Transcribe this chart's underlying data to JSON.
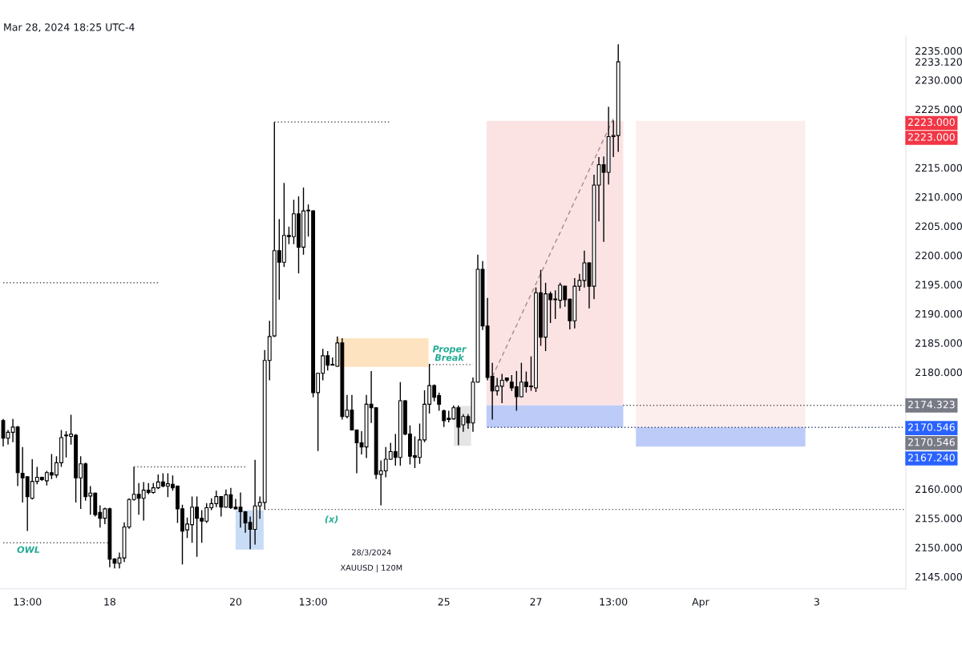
{
  "chart_data": {
    "type": "candlestick",
    "categories": [
      null,
      null,
      null,
      null,
      null,
      "13:00",
      null,
      null,
      null,
      null,
      null,
      null,
      null,
      null,
      null,
      null,
      null,
      null,
      null,
      null,
      null,
      null,
      "18",
      null,
      null,
      null,
      null,
      null,
      null,
      null,
      null,
      null,
      null,
      null,
      null,
      null,
      null,
      null,
      null,
      null,
      null,
      null,
      null,
      null,
      null,
      null,
      null,
      null,
      "20",
      null,
      null,
      null,
      null,
      null,
      null,
      null,
      null,
      null,
      null,
      null,
      null,
      null,
      null,
      null,
      "13:00",
      null,
      null,
      null,
      null,
      null,
      null,
      null,
      null,
      null,
      null,
      null,
      null,
      null,
      null,
      null,
      null,
      null,
      null,
      null,
      null,
      null,
      null,
      null,
      null,
      null,
      null,
      "25",
      null,
      null,
      null,
      null,
      null,
      null,
      null,
      null,
      null,
      null,
      null,
      null,
      null,
      null,
      null,
      null,
      null,
      null,
      "27",
      null,
      null,
      null,
      null,
      null,
      null,
      null,
      null,
      null,
      null,
      null,
      null,
      null,
      null,
      null,
      "13:00",
      null,
      null,
      null,
      null,
      null,
      null,
      null,
      null,
      null,
      null,
      null,
      null,
      null,
      null,
      null,
      null,
      null,
      "Apr",
      null,
      null,
      null,
      null,
      null,
      null,
      null,
      null,
      null,
      null,
      null,
      null,
      null,
      null,
      null,
      null,
      null,
      null,
      null,
      null,
      null,
      null,
      null,
      "3",
      null,
      null,
      null,
      null,
      null,
      null,
      null,
      null,
      null,
      null,
      null,
      null,
      null,
      null,
      null,
      null,
      null,
      null
    ],
    "ohlc": [
      [
        2171.7,
        2172.0,
        2167.3,
        2168.7
      ],
      [
        2168.7,
        2170.1,
        2167.6,
        2169.7
      ],
      [
        2169.7,
        2172.0,
        2168.0,
        2170.6
      ],
      [
        2170.6,
        2170.8,
        2160.5,
        2162.8
      ],
      [
        2162.7,
        2167.2,
        2157.7,
        2161.9
      ],
      [
        2162.1,
        2162.1,
        2152.8,
        2158.7
      ],
      [
        2158.4,
        2165.1,
        2158.2,
        2161.3
      ],
      [
        2161.3,
        2163.8,
        2160.8,
        2162.0
      ],
      [
        2162.0,
        2162.1,
        2161.4,
        2161.6
      ],
      [
        2161.4,
        2163.1,
        2160.6,
        2162.8
      ],
      [
        2162.8,
        2166.0,
        2161.7,
        2162.4
      ],
      [
        2162.4,
        2165.6,
        2161.9,
        2164.5
      ],
      [
        2164.5,
        2170.1,
        2163.8,
        2168.8
      ],
      [
        2169.1,
        2169.9,
        2165.4,
        2169.2
      ],
      [
        2169.0,
        2172.7,
        2167.6,
        2169.4
      ],
      [
        2169.2,
        2169.4,
        2157.7,
        2161.9
      ],
      [
        2161.9,
        2165.6,
        2156.6,
        2164.3
      ],
      [
        2164.3,
        2164.5,
        2158.0,
        2158.7
      ],
      [
        2158.8,
        2160.5,
        2155.6,
        2159.3
      ],
      [
        2159.3,
        2159.4,
        2155.3,
        2155.6
      ],
      [
        2156.0,
        2157.2,
        2153.4,
        2155.0
      ],
      [
        2155.0,
        2156.8,
        2154.0,
        2156.6
      ],
      [
        2156.6,
        2156.8,
        2146.6,
        2148.0
      ],
      [
        2148.0,
        2148.2,
        2146.4,
        2147.3
      ],
      [
        2147.3,
        2149.1,
        2146.4,
        2148.2
      ],
      [
        2148.2,
        2154.3,
        2147.5,
        2153.5
      ],
      [
        2153.5,
        2158.4,
        2153.2,
        2158.2
      ],
      [
        2158.2,
        2163.8,
        2158.0,
        2159.1
      ],
      [
        2159.1,
        2161.0,
        2155.6,
        2158.4
      ],
      [
        2158.4,
        2161.2,
        2154.6,
        2159.8
      ],
      [
        2159.8,
        2161.0,
        2159.1,
        2159.4
      ],
      [
        2159.4,
        2161.0,
        2159.2,
        2160.2
      ],
      [
        2160.2,
        2162.5,
        2160.0,
        2161.2
      ],
      [
        2161.2,
        2162.7,
        2160.3,
        2160.5
      ],
      [
        2160.5,
        2162.7,
        2158.6,
        2160.9
      ],
      [
        2160.8,
        2162.3,
        2159.7,
        2160.2
      ],
      [
        2160.5,
        2160.6,
        2154.2,
        2156.6
      ],
      [
        2156.6,
        2157.3,
        2147.1,
        2152.8
      ],
      [
        2153.0,
        2155.1,
        2151.6,
        2154.0
      ],
      [
        2153.9,
        2158.7,
        2150.8,
        2156.9
      ],
      [
        2156.9,
        2158.7,
        2148.4,
        2155.0
      ],
      [
        2155.0,
        2156.4,
        2150.8,
        2154.5
      ],
      [
        2154.5,
        2157.6,
        2154.2,
        2156.8
      ],
      [
        2156.8,
        2158.4,
        2156.4,
        2157.5
      ],
      [
        2157.5,
        2159.7,
        2156.9,
        2158.7
      ],
      [
        2158.7,
        2158.8,
        2155.3,
        2156.9
      ],
      [
        2156.9,
        2159.9,
        2156.8,
        2159.0
      ],
      [
        2159.0,
        2160.2,
        2156.6,
        2156.8
      ],
      [
        2156.9,
        2158.3,
        2156.5,
        2156.6
      ],
      [
        2156.9,
        2159.4,
        2153.4,
        2156.1
      ],
      [
        2156.1,
        2156.2,
        2152.5,
        2154.2
      ],
      [
        2154.3,
        2155.3,
        2149.7,
        2153.1
      ],
      [
        2153.1,
        2165.0,
        2150.5,
        2157.1
      ],
      [
        2157.1,
        2158.7,
        2154.9,
        2157.7
      ],
      [
        2157.7,
        2183.8,
        2156.5,
        2182.0
      ],
      [
        2182.0,
        2188.8,
        2178.6,
        2186.1
      ],
      [
        2186.2,
        2222.8,
        2186.0,
        2200.8
      ],
      [
        2200.8,
        2206.2,
        2192.4,
        2198.8
      ],
      [
        2198.8,
        2212.4,
        2198.0,
        2203.4
      ],
      [
        2203.4,
        2204.9,
        2201.9,
        2203.2
      ],
      [
        2203.2,
        2209.5,
        2201.9,
        2207.1
      ],
      [
        2207.1,
        2210.1,
        2196.9,
        2201.4
      ],
      [
        2201.4,
        2211.6,
        2200.1,
        2207.6
      ],
      [
        2207.6,
        2208.7,
        2203.2,
        2207.7
      ],
      [
        2207.6,
        2207.7,
        2175.7,
        2176.5
      ],
      [
        2176.5,
        2179.9,
        2166.5,
        2179.8
      ],
      [
        2179.8,
        2184.0,
        2178.6,
        2182.8
      ],
      [
        2182.8,
        2183.6,
        2180.3,
        2181.2
      ],
      [
        2181.2,
        2182.5,
        2181.2,
        2181.3
      ],
      [
        2181.0,
        2186.1,
        2180.9,
        2185.0
      ],
      [
        2185.0,
        2185.8,
        2171.9,
        2172.4
      ],
      [
        2172.4,
        2176.1,
        2172.1,
        2173.5
      ],
      [
        2173.5,
        2176.1,
        2170.0,
        2170.1
      ],
      [
        2170.1,
        2170.2,
        2162.7,
        2167.9
      ],
      [
        2167.9,
        2169.9,
        2165.9,
        2167.2
      ],
      [
        2167.2,
        2176.1,
        2165.3,
        2174.5
      ],
      [
        2174.5,
        2180.2,
        2171.3,
        2173.9
      ],
      [
        2173.9,
        2174.0,
        2161.7,
        2162.5
      ],
      [
        2162.5,
        2164.9,
        2157.2,
        2163.1
      ],
      [
        2163.1,
        2167.2,
        2162.0,
        2165.1
      ],
      [
        2165.1,
        2167.9,
        2165.0,
        2166.4
      ],
      [
        2166.4,
        2169.4,
        2164.0,
        2165.4
      ],
      [
        2165.4,
        2178.3,
        2164.0,
        2175.1
      ],
      [
        2175.1,
        2175.2,
        2169.2,
        2169.4
      ],
      [
        2169.4,
        2170.9,
        2164.2,
        2165.6
      ],
      [
        2165.7,
        2169.0,
        2163.6,
        2165.4
      ],
      [
        2165.4,
        2171.2,
        2164.3,
        2168.4
      ],
      [
        2168.4,
        2176.9,
        2168.0,
        2174.5
      ],
      [
        2174.5,
        2181.4,
        2172.9,
        2177.7
      ],
      [
        2177.7,
        2177.9,
        2175.0,
        2175.7
      ],
      [
        2176.0,
        2176.5,
        2173.4,
        2174.5
      ],
      [
        2173.4,
        2173.6,
        2170.6,
        2171.7
      ],
      [
        2172.1,
        2173.4,
        2171.4,
        2171.9
      ],
      [
        2172.0,
        2174.3,
        2171.9,
        2173.9
      ],
      [
        2173.9,
        2174.3,
        2167.5,
        2170.6
      ],
      [
        2171.0,
        2172.8,
        2169.8,
        2172.4
      ],
      [
        2172.4,
        2172.8,
        2170.3,
        2171.3
      ],
      [
        2171.3,
        2179.1,
        2169.8,
        2178.3
      ],
      [
        2178.3,
        2200.1,
        2178.2,
        2197.6
      ],
      [
        2197.6,
        2199.0,
        2187.2,
        2187.9
      ],
      [
        2187.9,
        2192.7,
        2178.6,
        2179.1
      ],
      [
        2179.3,
        2181.6,
        2171.9,
        2176.8
      ],
      [
        2176.8,
        2179.0,
        2176.0,
        2177.6
      ],
      [
        2177.6,
        2179.7,
        2174.7,
        2178.6
      ],
      [
        2179.0,
        2179.1,
        2178.3,
        2178.6
      ],
      [
        2178.3,
        2179.5,
        2176.8,
        2177.3
      ],
      [
        2177.5,
        2180.2,
        2173.4,
        2175.8
      ],
      [
        2175.8,
        2181.6,
        2175.7,
        2178.3
      ],
      [
        2178.3,
        2180.1,
        2176.5,
        2177.5
      ],
      [
        2177.5,
        2182.7,
        2176.8,
        2177.6
      ],
      [
        2177.3,
        2194.5,
        2176.6,
        2193.6
      ],
      [
        2193.6,
        2197.5,
        2184.5,
        2186.0
      ],
      [
        2186.0,
        2195.3,
        2183.6,
        2193.4
      ],
      [
        2193.4,
        2193.8,
        2188.4,
        2192.4
      ],
      [
        2192.4,
        2194.0,
        2189.1,
        2192.5
      ],
      [
        2192.3,
        2195.3,
        2190.9,
        2194.9
      ],
      [
        2194.7,
        2194.8,
        2191.2,
        2192.4
      ],
      [
        2192.5,
        2192.6,
        2187.3,
        2188.8
      ],
      [
        2188.8,
        2196.1,
        2187.5,
        2194.7
      ],
      [
        2194.7,
        2196.8,
        2193.9,
        2195.7
      ],
      [
        2195.7,
        2200.8,
        2194.5,
        2198.7
      ],
      [
        2198.7,
        2198.8,
        2190.9,
        2194.7
      ],
      [
        2194.7,
        2213.8,
        2192.5,
        2212.0
      ],
      [
        2212.0,
        2216.8,
        2205.8,
        2215.5
      ],
      [
        2215.5,
        2216.9,
        2202.3,
        2214.2
      ],
      [
        2214.2,
        2225.4,
        2212.1,
        2220.3
      ],
      [
        2220.3,
        2223.1,
        2216.8,
        2220.5
      ],
      [
        2220.5,
        2236.1,
        2217.7,
        2233.12
      ],
      null,
      null,
      null,
      null,
      null,
      null,
      null,
      null,
      null,
      null,
      null,
      null,
      null,
      null,
      null,
      null,
      null,
      null,
      null,
      null,
      null,
      null,
      null,
      null,
      null,
      null,
      null,
      null,
      null,
      null,
      null,
      null,
      null,
      null,
      null,
      null,
      null,
      null,
      null,
      null,
      null,
      null,
      null,
      null,
      null,
      null,
      null,
      null,
      null,
      null,
      null,
      null,
      null,
      null,
      null,
      null,
      null,
      null,
      null
    ],
    "color": "#000000",
    "bands": [
      {
        "axis": "y",
        "from": 2174.323,
        "to": 2223,
        "color": "#fbe3e4"
      },
      {
        "axis": "y",
        "from": 2170.546,
        "to": 2174.323,
        "color": "#bccbf8"
      },
      {
        "axis": "y",
        "from": 2170.546,
        "to": 2223,
        "color": "#fdeeee"
      },
      {
        "axis": "y",
        "from": 2167.24,
        "to": 2170.546,
        "color": "#bccbf8"
      },
      {
        "axis": "y",
        "from": 2180.9,
        "to": 2185.8,
        "color": "#fde3c0"
      }
    ],
    "series": [
      {
        "type": "line",
        "color": "#555555",
        "line_style": "dotted",
        "values": [
          2195.3,
          2195.3,
          2195.3,
          2195.3,
          2195.3,
          2195.3,
          2195.3,
          2195.3,
          2195.3,
          2195.3,
          2195.3,
          2195.3,
          2195.3,
          2195.3,
          2195.3,
          2195.3,
          2195.3,
          2195.3,
          2195.3,
          2195.3,
          2195.3,
          2195.3,
          2195.3,
          2195.3,
          2195.3,
          2195.3,
          2195.3,
          2195.3,
          2195.3,
          2195.3,
          2195.3,
          2195.3,
          2195.3,
          null,
          null,
          null,
          null,
          null,
          null,
          null,
          null,
          null,
          null,
          null,
          null,
          null,
          null,
          null,
          null,
          null,
          null,
          null,
          null,
          null,
          null,
          null,
          2222.8,
          2222.8,
          2222.8,
          2222.8,
          2222.8,
          2222.8,
          2222.8,
          2222.8,
          2222.8,
          2222.8,
          2222.8,
          2222.8,
          2222.8,
          2222.8,
          2222.8,
          2222.8,
          2222.8,
          2222.8,
          2222.8,
          2222.8,
          2222.8,
          2222.8,
          2222.8,
          2222.8,
          2222.8,
          null,
          null,
          null,
          null,
          null,
          null,
          null,
          2181.3,
          2181.3,
          2181.3,
          2181.3,
          2181.3,
          2181.3,
          2181.3,
          2181.3,
          2181.3,
          2181.3,
          null,
          null,
          null,
          null,
          null,
          null,
          null,
          null,
          null,
          null,
          null,
          null,
          null,
          null,
          null,
          null,
          null,
          null,
          null,
          null,
          null,
          null,
          null,
          null,
          null,
          null,
          null,
          null,
          null,
          null,
          null,
          null,
          null,
          null,
          null,
          null,
          null,
          null,
          null,
          null,
          null,
          null,
          null,
          null,
          null,
          null,
          null,
          null,
          null,
          null,
          null,
          null,
          null,
          null,
          null,
          null,
          null,
          null,
          null,
          null,
          null,
          null,
          null,
          null,
          null,
          null,
          null,
          null,
          null,
          null,
          null,
          null,
          null,
          null,
          null,
          null,
          null,
          null,
          null,
          null,
          null,
          null,
          null,
          null,
          null,
          null,
          null,
          null,
          null
        ]
      },
      {
        "type": "line",
        "color": "#555555",
        "line_style": "dotted",
        "values": [
          2150.8,
          2150.8,
          2150.8,
          2150.8,
          2150.8,
          2150.8,
          2150.8,
          2150.8,
          2150.8,
          2150.8,
          2150.8,
          2150.8,
          2150.8,
          2150.8,
          2150.8,
          2150.8,
          2150.8,
          2150.8,
          2150.8,
          2150.8,
          2150.8,
          2150.8,
          2150.8,
          null,
          null,
          null,
          null,
          2163.8,
          2163.8,
          2163.8,
          2163.8,
          2163.8,
          2163.8,
          2163.8,
          2163.8,
          2163.8,
          2163.8,
          2163.8,
          2163.8,
          2163.8,
          2163.8,
          2163.8,
          2163.8,
          2163.8,
          2163.8,
          2163.8,
          2163.8,
          2163.8,
          2163.8,
          2163.8,
          2163.8,
          null,
          null,
          null,
          2156.5,
          2156.5,
          2156.5,
          2156.5,
          2156.5,
          2156.5,
          2156.5,
          2156.5,
          2156.5,
          2156.5,
          2156.5,
          2156.5,
          2156.5,
          2156.5,
          2156.5,
          2156.5,
          2156.5,
          2156.5,
          2156.5,
          2156.5,
          2156.5,
          2156.5,
          2156.5,
          2156.5,
          2156.5,
          2156.5,
          2156.5,
          2156.5,
          2156.5,
          2156.5,
          2156.5,
          2156.5,
          2156.5,
          2156.5,
          2156.5,
          2156.5,
          2156.5,
          2156.5,
          2156.5,
          2156.5,
          2156.5,
          2156.5,
          2156.5,
          2156.5,
          2156.5,
          2156.5,
          2156.5,
          2156.5,
          2156.5,
          2156.5,
          2156.5,
          2156.5,
          2156.5,
          2156.5,
          2156.5,
          2156.5,
          2156.5,
          2156.5,
          2156.5,
          2156.5,
          2156.5,
          2156.5,
          2156.5,
          2156.5,
          2156.5,
          2156.5,
          2156.5,
          2156.5,
          2156.5,
          2156.5,
          2156.5,
          2156.5,
          2156.5,
          2156.5,
          2156.5,
          2156.5,
          2156.5,
          2156.5,
          2156.5,
          2156.5,
          2156.5,
          2156.5,
          2156.5,
          2156.5,
          2156.5,
          2156.5,
          2156.5,
          2156.5,
          2156.5,
          2156.5,
          2156.5,
          2156.5,
          2156.5,
          2156.5,
          2156.5,
          2156.5,
          2156.5,
          2156.5,
          2156.5,
          2156.5,
          2156.5,
          2156.5,
          2156.5,
          2156.5,
          2156.5,
          2156.5,
          2156.5,
          2156.5,
          2156.5,
          2156.5,
          2156.5,
          2156.5,
          2156.5,
          2156.5,
          2156.5,
          2156.5,
          2156.5,
          2156.5,
          2156.5,
          2156.5,
          2156.5,
          2156.5,
          2156.5,
          2156.5,
          2156.5,
          2156.5,
          2156.5,
          2156.5,
          2156.5,
          2156.5,
          2156.5,
          2156.5,
          2156.5
        ]
      },
      {
        "type": "line",
        "color": "#555555",
        "line_style": "dotted",
        "values": [
          null,
          null,
          null,
          null,
          null,
          null,
          null,
          null,
          null,
          null,
          null,
          null,
          null,
          null,
          null,
          null,
          null,
          null,
          null,
          null,
          null,
          null,
          null,
          null,
          null,
          null,
          null,
          null,
          null,
          null,
          null,
          null,
          null,
          null,
          null,
          null,
          null,
          null,
          null,
          null,
          null,
          null,
          null,
          null,
          null,
          null,
          null,
          null,
          null,
          null,
          null,
          null,
          null,
          null,
          null,
          null,
          null,
          null,
          null,
          null,
          null,
          null,
          null,
          null,
          null,
          null,
          null,
          null,
          null,
          null,
          null,
          null,
          null,
          null,
          null,
          null,
          null,
          null,
          null,
          null,
          null,
          null,
          null,
          null,
          null,
          null,
          null,
          null,
          null,
          null,
          null,
          null,
          null,
          null,
          null,
          null,
          null,
          null,
          null,
          null,
          null,
          null,
          null,
          null,
          null,
          null,
          null,
          null,
          null,
          null,
          null,
          null,
          null,
          null,
          null,
          null,
          null,
          null,
          null,
          null,
          null,
          null,
          null,
          null,
          null,
          null,
          null,
          null,
          2174.323,
          2174.323,
          2174.323,
          2174.323,
          2174.323,
          2174.323,
          2174.323,
          2174.323,
          2174.323,
          2174.323,
          2174.323,
          2174.323,
          2174.323,
          2174.323,
          2174.323,
          2174.323,
          2174.323,
          2174.323,
          2174.323,
          2174.323,
          2174.323,
          2174.323,
          2174.323,
          2174.323,
          2174.323,
          2174.323,
          2174.323,
          2174.323,
          2174.323,
          2174.323,
          2174.323,
          2174.323,
          2174.323,
          2174.323,
          2174.323,
          2174.323,
          2174.323,
          2174.323,
          2174.323,
          2174.323,
          2174.323,
          2174.323,
          2174.323,
          2174.323,
          2174.323,
          2174.323,
          2174.323,
          2174.323,
          2174.323,
          2174.323,
          2174.323,
          2174.323,
          2174.323,
          2174.323,
          2174.323,
          2174.323,
          2174.323,
          2174.323,
          2174.323
        ]
      },
      {
        "type": "line",
        "color": "#3a4a7a",
        "line_style": "dotted",
        "values": [
          null,
          null,
          null,
          null,
          null,
          null,
          null,
          null,
          null,
          null,
          null,
          null,
          null,
          null,
          null,
          null,
          null,
          null,
          null,
          null,
          null,
          null,
          null,
          null,
          null,
          null,
          null,
          null,
          null,
          null,
          null,
          null,
          null,
          null,
          null,
          null,
          null,
          null,
          null,
          null,
          null,
          null,
          null,
          null,
          null,
          null,
          null,
          null,
          null,
          null,
          null,
          null,
          null,
          null,
          null,
          null,
          null,
          null,
          null,
          null,
          null,
          null,
          null,
          null,
          null,
          null,
          null,
          null,
          null,
          null,
          null,
          null,
          null,
          null,
          null,
          null,
          null,
          null,
          null,
          null,
          null,
          null,
          null,
          null,
          null,
          null,
          null,
          null,
          null,
          null,
          null,
          null,
          null,
          null,
          null,
          null,
          null,
          null,
          null,
          null,
          2170.546,
          2170.546,
          2170.546,
          2170.546,
          2170.546,
          2170.546,
          2170.546,
          2170.546,
          2170.546,
          2170.546,
          2170.546,
          2170.546,
          2170.546,
          2170.546,
          2170.546,
          2170.546,
          2170.546,
          2170.546,
          2170.546,
          2170.546,
          2170.546,
          2170.546,
          2170.546,
          2170.546,
          2170.546,
          2170.546,
          2170.546,
          2170.546,
          2170.546,
          2170.546,
          2170.546,
          2170.546,
          2170.546,
          2170.546,
          2170.546,
          2170.546,
          2170.546,
          2170.546,
          2170.546,
          2170.546,
          2170.546,
          2170.546,
          2170.546,
          2170.546,
          2170.546,
          2170.546,
          2170.546,
          2170.546,
          2170.546,
          2170.546,
          2170.546,
          2170.546,
          2170.546,
          2170.546,
          2170.546,
          2170.546,
          2170.546,
          2170.546,
          2170.546,
          2170.546,
          2170.546,
          2170.546,
          2170.546,
          2170.546,
          2170.546,
          2170.546,
          2170.546,
          2170.546,
          2170.546,
          2170.546,
          2170.546,
          2170.546,
          2170.546,
          2170.546,
          2170.546,
          2170.546,
          2170.546,
          2170.546,
          2170.546,
          2170.546,
          2170.546,
          2170.546,
          2170.546,
          2170.546,
          2170.546,
          2170.546,
          2170.546
        ]
      },
      {
        "type": "line",
        "color": "#a08c8e",
        "line_style": "dashed",
        "values": [
          null,
          null,
          null,
          null,
          null,
          null,
          null,
          null,
          null,
          null,
          null,
          null,
          null,
          null,
          null,
          null,
          null,
          null,
          null,
          null,
          null,
          null,
          null,
          null,
          null,
          null,
          null,
          null,
          null,
          null,
          null,
          null,
          null,
          null,
          null,
          null,
          null,
          null,
          null,
          null,
          null,
          null,
          null,
          null,
          null,
          null,
          null,
          null,
          null,
          null,
          null,
          null,
          null,
          null,
          null,
          null,
          null,
          null,
          null,
          null,
          null,
          null,
          null,
          null,
          null,
          null,
          null,
          null,
          null,
          null,
          null,
          null,
          null,
          null,
          null,
          null,
          null,
          null,
          null,
          null,
          null,
          null,
          null,
          null,
          null,
          null,
          null,
          null,
          null,
          null,
          null,
          null,
          null,
          null,
          null,
          null,
          null,
          null,
          null,
          null,
          null,
          2179.2,
          2181.0,
          2182.7,
          2184.5,
          2186.3,
          2188.0,
          2189.8,
          2191.6,
          2193.3,
          2195.1,
          2196.9,
          2198.6,
          2200.4,
          2202.2,
          2203.9,
          2205.7,
          2207.5,
          2209.3,
          2211.0,
          2212.8,
          2214.6,
          2216.3,
          2218.1,
          2219.9,
          2221.6,
          2223.4,
          null,
          null,
          null,
          null,
          null,
          null,
          null,
          null,
          null,
          null,
          null,
          null,
          null,
          null,
          null,
          null,
          null,
          null,
          null,
          null,
          null,
          null,
          null,
          null,
          null,
          null,
          null,
          null,
          null,
          null,
          null,
          null,
          null,
          null,
          null,
          null,
          null,
          null,
          null,
          null,
          null,
          null,
          null,
          null,
          null,
          null,
          null,
          null,
          null,
          null,
          null,
          null,
          null,
          null,
          null,
          null,
          null,
          null,
          null,
          null
        ]
      }
    ],
    "ylim": [
      2142.9,
      2237.5
    ],
    "yticks": [
      {
        "value": 2235,
        "label": "2235.000"
      },
      {
        "value": 2233.12,
        "label": "2233.120"
      },
      {
        "value": 2230,
        "label": "2230.000"
      },
      {
        "value": 2225,
        "label": "2225.000"
      },
      {
        "value": 2215,
        "label": "2215.000"
      },
      {
        "value": 2210,
        "label": "2210.000"
      },
      {
        "value": 2205,
        "label": "2205.000"
      },
      {
        "value": 2200,
        "label": "2200.000"
      },
      {
        "value": 2195,
        "label": "2195.000"
      },
      {
        "value": 2190,
        "label": "2190.000"
      },
      {
        "value": 2185,
        "label": "2185.000"
      },
      {
        "value": 2180,
        "label": "2180.000"
      },
      {
        "value": 2160,
        "label": "2160.000"
      },
      {
        "value": 2155,
        "label": "2155.000"
      },
      {
        "value": 2150,
        "label": "2150.000"
      },
      {
        "value": 2145,
        "label": "2145.000"
      }
    ],
    "annotations": [
      "Mar 28, 2024 18:25 UTC-4",
      "28/3/2024",
      "XAUUSD | 120M",
      "(x)",
      "Proper\nBreak",
      "2223.000",
      "2223.000",
      "2174.323",
      "2170.546",
      "2170.546",
      "2167.240",
      {
        "text": "OWL",
        "y": 2150.8
      }
    ],
    "grid": false
  }
}
